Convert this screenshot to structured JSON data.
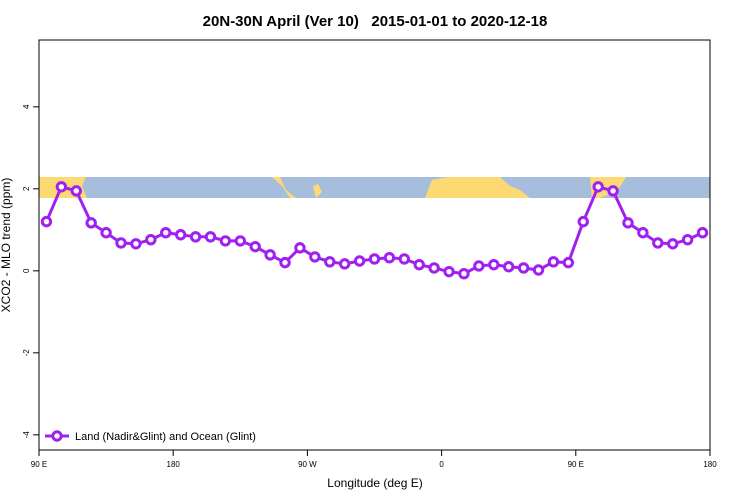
{
  "chart_data": {
    "type": "line",
    "title": "20N-30N April (Ver 10)   2015-01-01 to 2020-12-18",
    "xlabel": "Longitude (deg E)",
    "ylabel": "XCO2 - MLO trend (ppm)",
    "x": [
      95,
      105,
      115,
      125,
      135,
      145,
      155,
      165,
      175,
      185,
      195,
      205,
      215,
      225,
      235,
      245,
      255,
      265,
      275,
      285,
      295,
      305,
      315,
      325,
      335,
      345,
      355,
      365,
      375,
      385,
      395,
      405,
      415,
      425,
      435,
      445,
      455,
      465,
      475,
      485,
      495,
      505,
      515,
      525,
      535
    ],
    "series": [
      {
        "name": "Land (Nadir&Glint) and Ocean (Glint)",
        "color": "#a020f0",
        "values": [
          1.2,
          2.05,
          1.95,
          1.17,
          0.93,
          0.68,
          0.66,
          0.76,
          0.93,
          0.88,
          0.83,
          0.83,
          0.73,
          0.73,
          0.59,
          0.39,
          0.2,
          0.56,
          0.34,
          0.22,
          0.17,
          0.24,
          0.29,
          0.32,
          0.29,
          0.15,
          0.07,
          -0.02,
          -0.07,
          0.12,
          0.15,
          0.1,
          0.07,
          0.02,
          0.22,
          0.2,
          1.2,
          2.05,
          1.95,
          1.17,
          0.93,
          0.68,
          0.66,
          0.76,
          0.93
        ]
      }
    ],
    "xlim": [
      90,
      540
    ],
    "xticks": [
      {
        "value": 90,
        "label": "90 E"
      },
      {
        "value": 180,
        "label": "180"
      },
      {
        "value": 270,
        "label": "90 W"
      },
      {
        "value": 360,
        "label": "0"
      },
      {
        "value": 450,
        "label": "90 E"
      },
      {
        "value": 540,
        "label": "180"
      }
    ],
    "ylim": [
      -4.37,
      5.63
    ],
    "yticks": [
      -4,
      -2,
      0,
      2,
      4
    ],
    "legend": "bottom-left"
  }
}
